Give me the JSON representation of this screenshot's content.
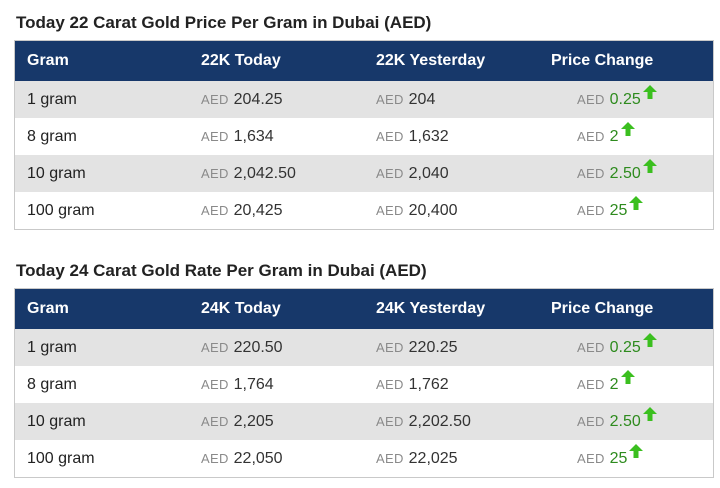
{
  "colors": {
    "header_bg": "#17386a",
    "row_shade": "#e3e3e3",
    "up_green": "#2e8b1e"
  },
  "tables": [
    {
      "title": "Today 22 Carat Gold Price Per Gram in Dubai (AED)",
      "headers": [
        "Gram",
        "22K Today",
        "22K Yesterday",
        "Price Change"
      ],
      "rows": [
        {
          "gram": "1 gram",
          "today_cur": "AED",
          "today": "204.25",
          "yest_cur": "AED",
          "yesterday": "204",
          "chg_cur": "AED",
          "change": "0.25",
          "trend_icon": "arrow-up-icon"
        },
        {
          "gram": "8 gram",
          "today_cur": "AED",
          "today": "1,634",
          "yest_cur": "AED",
          "yesterday": "1,632",
          "chg_cur": "AED",
          "change": "2",
          "trend_icon": "arrow-up-icon"
        },
        {
          "gram": "10 gram",
          "today_cur": "AED",
          "today": "2,042.50",
          "yest_cur": "AED",
          "yesterday": "2,040",
          "chg_cur": "AED",
          "change": "2.50",
          "trend_icon": "arrow-up-icon"
        },
        {
          "gram": "100 gram",
          "today_cur": "AED",
          "today": "20,425",
          "yest_cur": "AED",
          "yesterday": "20,400",
          "chg_cur": "AED",
          "change": "25",
          "trend_icon": "arrow-up-icon"
        }
      ]
    },
    {
      "title": "Today 24 Carat Gold Rate Per Gram in Dubai (AED)",
      "headers": [
        "Gram",
        "24K Today",
        "24K Yesterday",
        "Price Change"
      ],
      "rows": [
        {
          "gram": "1 gram",
          "today_cur": "AED",
          "today": "220.50",
          "yest_cur": "AED",
          "yesterday": "220.25",
          "chg_cur": "AED",
          "change": "0.25",
          "trend_icon": "arrow-up-icon"
        },
        {
          "gram": "8 gram",
          "today_cur": "AED",
          "today": "1,764",
          "yest_cur": "AED",
          "yesterday": "1,762",
          "chg_cur": "AED",
          "change": "2",
          "trend_icon": "arrow-up-icon"
        },
        {
          "gram": "10 gram",
          "today_cur": "AED",
          "today": "2,205",
          "yest_cur": "AED",
          "yesterday": "2,202.50",
          "chg_cur": "AED",
          "change": "2.50",
          "trend_icon": "arrow-up-icon"
        },
        {
          "gram": "100 gram",
          "today_cur": "AED",
          "today": "22,050",
          "yest_cur": "AED",
          "yesterday": "22,025",
          "chg_cur": "AED",
          "change": "25",
          "trend_icon": "arrow-up-icon"
        }
      ]
    }
  ]
}
